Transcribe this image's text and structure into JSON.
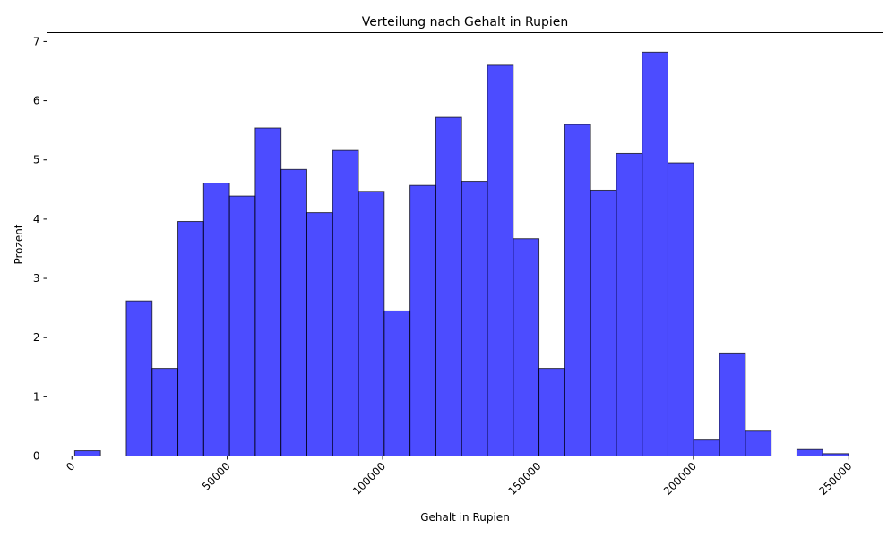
{
  "chart_data": {
    "type": "bar",
    "title": "Verteilung nach Gehalt in Rupien",
    "xlabel": "Gehalt in Rupien",
    "ylabel": "Prozent",
    "xlim": [
      -8000,
      261000
    ],
    "ylim": [
      0,
      7.15
    ],
    "bin_width": 8300,
    "xticks": [
      0,
      50000,
      100000,
      150000,
      200000,
      250000
    ],
    "xtick_labels": [
      "0",
      "50000",
      "100000",
      "150000",
      "200000",
      "250000"
    ],
    "yticks": [
      0,
      1,
      2,
      3,
      4,
      5,
      6,
      7
    ],
    "ytick_labels": [
      "0",
      "1",
      "2",
      "3",
      "4",
      "5",
      "6",
      "7"
    ],
    "bar_color": "#0000ff",
    "bar_opacity": 0.7,
    "edge_color": "#000000",
    "grid": false,
    "bins": [
      {
        "start": 900,
        "value": 0.09
      },
      {
        "start": 9200,
        "value": 0
      },
      {
        "start": 17500,
        "value": 2.62
      },
      {
        "start": 25800,
        "value": 1.48
      },
      {
        "start": 34100,
        "value": 3.96
      },
      {
        "start": 42400,
        "value": 4.61
      },
      {
        "start": 50700,
        "value": 4.39
      },
      {
        "start": 59000,
        "value": 5.54
      },
      {
        "start": 67300,
        "value": 4.84
      },
      {
        "start": 75600,
        "value": 4.11
      },
      {
        "start": 83900,
        "value": 5.16
      },
      {
        "start": 92200,
        "value": 4.47
      },
      {
        "start": 100500,
        "value": 2.45
      },
      {
        "start": 108800,
        "value": 4.57
      },
      {
        "start": 117100,
        "value": 5.72
      },
      {
        "start": 125400,
        "value": 4.64
      },
      {
        "start": 133700,
        "value": 6.6
      },
      {
        "start": 142000,
        "value": 3.67
      },
      {
        "start": 150300,
        "value": 1.48
      },
      {
        "start": 158600,
        "value": 5.6
      },
      {
        "start": 166900,
        "value": 4.49
      },
      {
        "start": 175200,
        "value": 5.11
      },
      {
        "start": 183500,
        "value": 6.82
      },
      {
        "start": 191800,
        "value": 4.95
      },
      {
        "start": 200100,
        "value": 0.27
      },
      {
        "start": 208400,
        "value": 1.74
      },
      {
        "start": 216700,
        "value": 0.42
      },
      {
        "start": 225000,
        "value": 0
      },
      {
        "start": 233300,
        "value": 0.11
      },
      {
        "start": 241600,
        "value": 0.04
      }
    ]
  }
}
